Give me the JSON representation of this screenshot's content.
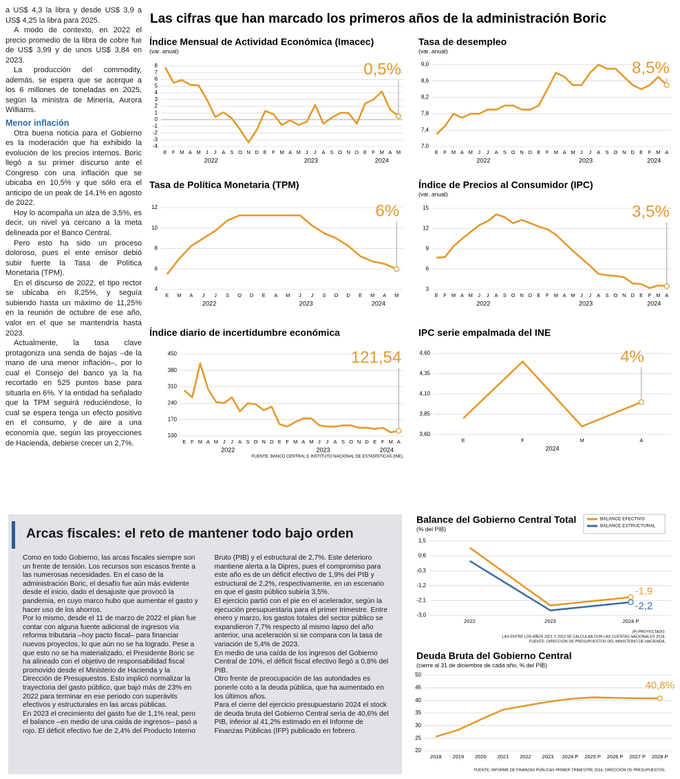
{
  "header": {
    "title": "Las cifras que han marcado los primeros años de la administración Boric"
  },
  "article_left": {
    "paragraphs_a": [
      "a US$ 4,3 la libra y desde US$ 3,9 a US$ 4,25 la libra para 2025.",
      "A modo de contexto, en 2022 el precio promedio de la libra de cobre fue de US$ 3,99 y de unos US$ 3,84 en 2023.",
      "La producción del commodity, además, se espera que se acerque a los 6 millones de toneladas en 2025, según la ministra de Minería, Aurora Williams."
    ],
    "subhead": "Menor inflación",
    "paragraphs_b": [
      "Otra buena noticia para el Gobierno es la moderación que ha exhibido la evolución de los precios internos. Boric llegó a su primer discurso ante el Congreso con una inflación que se ubicaba en 10,5% y que sólo era el anticipo de un peak de 14,1% en agosto de 2022.",
      "Hoy lo acompaña un alza de 3,5%, es decir, un nivel ya cercano a la meta delineada por el Banco Central.",
      "Pero esto ha sido un proceso doloroso, pues el ente emisor debió subir fuerte la Tasa de Política Monetaria (TPM).",
      "En el discurso de 2022, el tipo rector se ubicaba en 8,25%, y seguía subiendo hasta un máximo de 11,25% en la reunión de octubre de ese año, valor en el que se mantendría hasta 2023.",
      "Actualmente, la tasa clave protagoniza una senda de bajas –de la mano de una menor inflación–, por lo cual el Consejo del banco ya la ha recortado en 525 puntos base para situarla en 6%. Y la entidad ha señalado que la TPM seguirá reduciéndose, lo cual se espera tenga un efecto positivo en el consumo, y de aire a una economía que, según las proyecciones de Hacienda, debiese crecer un 2,7%."
    ]
  },
  "top_source": "FUENTE: BANCO CENTRAL E INSTITUTO NACIONAL DE ESTADÍSTICAS (INE)",
  "box": {
    "title": "Arcas fiscales: el reto de mantener todo bajo orden",
    "paragraphs": [
      "Como en todo Gobierno, las arcas fiscales siempre son un frente de tensión. Los recursos son escasos frente a las numerosas necesidades. En el caso de la administración Boric, el desafío fue aún más evidente desde el inicio, dado el desajuste que provocó la pandemia, en cuyo marco hubo que aumentar el gasto y hacer uso de los ahorros.",
      "Por lo mismo, desde el 11 de marzo de 2022 el plan fue contar con alguna fuente adicional de ingresos vía reforma tributaria –hoy pacto fiscal– para financiar nuevos proyectos, lo que aún no se ha logrado. Pese a que esto no se ha materializado, el Presidente Boric se ha alineado con el objetivo de responsabilidad fiscal promovido desde el Ministerio de Hacienda y la Dirección de Presupuestos. Esto implicó normalizar la trayectoria del gasto público, que bajó más de 23% en 2022 para terminar en ese periodo con superávits efectivos y estructurales en las arcas públicas.",
      "En 2023 el crecimiento del gasto fue de 1,1% real, pero el balance –en medio de una caída de ingresos– pasó a rojo. El déficit efectivo fue de 2,4% del Producto Interno Bruto (PIB) y el estructural de 2,7%. Este deterioro mantiene alerta a la Dipres, pues el compromiso para este año es de un déficit efectivo de 1,9% del PIB y estructural de 2,2%, respectivamente, en un escenario en que el gasto público subiría 3,5%.",
      "El ejercicio partió con el pie en el acelerador, según la ejecución presupuestaria para el primer trimestre. Entre enero y marzo, los gastos totales del sector público se expandieron 7,7% respecto al mismo lapso del año anterior, una aceleración si se compara con la tasa de variación de 5,4% de 2023.",
      "En medio de una caída de los ingresos del Gobierno Central de 10%, el déficit fiscal efectivo llegó a 0,8% del PIB.",
      "Otro frente de preocupación de las autoridades es ponerle coto a la deuda pública, que ha aumentado en los últimos años.",
      "Para el cierre del ejercicio presupuestario 2024 el stock de deuda bruta del Gobierno Central sería de 40,6% del PIB, inferior al 41,2% estimado en el Informe de Finanzas Públicas (IFP) publicado en febrero."
    ]
  },
  "chart_data": [
    {
      "type": "line",
      "title": "Índice Mensual de Actividad Económica (Imacec)",
      "subtitle": "(var. anual)",
      "color": "#e39a2d",
      "categories": [
        "E",
        "F",
        "M",
        "A",
        "M",
        "J",
        "J",
        "A",
        "S",
        "O",
        "N",
        "D",
        "E",
        "F",
        "M",
        "A",
        "M",
        "J",
        "J",
        "A",
        "S",
        "O",
        "N",
        "D",
        "E",
        "F",
        "M",
        "A",
        "M"
      ],
      "years": [
        "2022",
        "2023",
        "2024"
      ],
      "values": [
        7.8,
        5.5,
        5.9,
        5.2,
        5.1,
        3.0,
        0.4,
        1.1,
        0.2,
        -1.5,
        -3.4,
        -1.5,
        1.3,
        0.8,
        -0.8,
        -0.1,
        -0.8,
        -0.3,
        2.2,
        -0.6,
        0.3,
        1.0,
        1.0,
        -0.6,
        2.4,
        3.0,
        4.2,
        1.5,
        0.5
      ],
      "value_labels": [
        null,
        null,
        null,
        null,
        null,
        null,
        null,
        null,
        null,
        null,
        null,
        null,
        null,
        null,
        null,
        null,
        null,
        null,
        null,
        null,
        null,
        null,
        null,
        null,
        null,
        null,
        null,
        null,
        "0,5%"
      ],
      "ylim": [
        -4,
        8
      ],
      "yticks": [
        -4,
        -3,
        -2,
        -1,
        0,
        1,
        2,
        3,
        4,
        5,
        6,
        7,
        8
      ],
      "grid": true
    },
    {
      "type": "line",
      "title": "Tasa de desempleo",
      "subtitle": "(var. anual)",
      "color": "#e39a2d",
      "categories": [
        "E",
        "F",
        "M",
        "A",
        "M",
        "J",
        "J",
        "A",
        "S",
        "O",
        "N",
        "D",
        "E",
        "F",
        "M",
        "A",
        "M",
        "J",
        "J",
        "A",
        "S",
        "O",
        "N",
        "D",
        "E",
        "F",
        "M",
        "A"
      ],
      "years": [
        "2022",
        "2023",
        "2024"
      ],
      "values": [
        7.3,
        7.5,
        7.8,
        7.7,
        7.8,
        7.8,
        7.9,
        7.9,
        8.0,
        8.0,
        7.9,
        7.9,
        8.0,
        8.4,
        8.8,
        8.7,
        8.5,
        8.5,
        8.8,
        9.0,
        8.9,
        8.9,
        8.7,
        8.5,
        8.4,
        8.5,
        8.7,
        8.5
      ],
      "value_labels": [
        null,
        null,
        null,
        null,
        null,
        null,
        null,
        null,
        null,
        null,
        null,
        null,
        null,
        null,
        null,
        null,
        null,
        null,
        null,
        null,
        null,
        null,
        null,
        null,
        null,
        null,
        null,
        "8,5%"
      ],
      "ylim": [
        7.0,
        9.0
      ],
      "yticks": [
        {
          "value": 7.0,
          "label": "7,0"
        },
        {
          "value": 7.4,
          "label": "7,4"
        },
        {
          "value": 7.8,
          "label": "7,8"
        },
        {
          "value": 8.2,
          "label": "8,2"
        },
        {
          "value": 8.6,
          "label": "8,6"
        },
        {
          "value": 9.0,
          "label": "9,0"
        }
      ],
      "grid": true
    },
    {
      "type": "line",
      "title": "Tasa de Política Monetaria (TPM)",
      "color": "#e39a2d",
      "categories": [
        "E",
        "M",
        "A",
        "J",
        "J",
        "S",
        "O",
        "D",
        "E",
        "A",
        "M",
        "J",
        "J",
        "S",
        "O",
        "D",
        "E",
        "M",
        "A",
        "M"
      ],
      "years": [
        "2022",
        "2023",
        "2024"
      ],
      "values": [
        5.5,
        7.0,
        8.25,
        9.0,
        9.75,
        10.75,
        11.25,
        11.25,
        11.25,
        11.25,
        11.25,
        11.25,
        10.25,
        9.5,
        9.0,
        8.25,
        7.25,
        6.75,
        6.5,
        6.0
      ],
      "value_labels": [
        null,
        null,
        null,
        null,
        null,
        null,
        null,
        null,
        null,
        null,
        null,
        null,
        null,
        null,
        null,
        null,
        null,
        null,
        null,
        "6%"
      ],
      "ylim": [
        4,
        12
      ],
      "yticks": [
        4,
        6,
        8,
        10,
        12
      ],
      "grid": true
    },
    {
      "type": "line",
      "title": "Índice de Precios al Consumidor (IPC)",
      "subtitle": "(var. anual)",
      "color": "#e39a2d",
      "categories": [
        "E",
        "F",
        "M",
        "A",
        "M",
        "J",
        "J",
        "A",
        "S",
        "O",
        "N",
        "D",
        "E",
        "F",
        "M",
        "A",
        "M",
        "J",
        "J",
        "A",
        "S",
        "O",
        "N",
        "D",
        "E",
        "F",
        "M",
        "A"
      ],
      "years": [
        "2022",
        "2023",
        "2024"
      ],
      "values": [
        7.7,
        7.8,
        9.4,
        10.5,
        11.5,
        12.5,
        13.1,
        14.1,
        13.7,
        12.8,
        13.3,
        12.8,
        12.3,
        11.9,
        11.1,
        9.9,
        8.7,
        7.6,
        6.5,
        5.3,
        5.1,
        5.0,
        4.8,
        3.9,
        3.8,
        3.2,
        3.6,
        3.5
      ],
      "value_labels": [
        null,
        null,
        null,
        null,
        null,
        null,
        null,
        null,
        null,
        null,
        null,
        null,
        null,
        null,
        null,
        null,
        null,
        null,
        null,
        null,
        null,
        null,
        null,
        null,
        null,
        null,
        null,
        "3,5%"
      ],
      "ylim": [
        3,
        15
      ],
      "yticks": [
        3,
        6,
        9,
        12,
        15
      ],
      "grid": true
    },
    {
      "type": "line",
      "title": "Índice diario de incertidumbre económica",
      "color": "#e39a2d",
      "categories": [
        "E",
        "F",
        "M",
        "A",
        "M",
        "J",
        "J",
        "A",
        "S",
        "O",
        "N",
        "D",
        "E",
        "F",
        "M",
        "A",
        "M",
        "J",
        "J",
        "A",
        "S",
        "O",
        "N",
        "D",
        "E",
        "F",
        "M",
        "A"
      ],
      "years": [
        "2022",
        "2023",
        "2024"
      ],
      "values": [
        295,
        265,
        410,
        300,
        245,
        240,
        265,
        205,
        240,
        235,
        210,
        225,
        150,
        140,
        160,
        175,
        175,
        145,
        140,
        140,
        145,
        145,
        135,
        135,
        130,
        135,
        115,
        121.54
      ],
      "value_labels": [
        null,
        null,
        null,
        null,
        null,
        null,
        null,
        null,
        null,
        null,
        null,
        null,
        null,
        null,
        null,
        null,
        null,
        null,
        null,
        null,
        null,
        null,
        null,
        null,
        null,
        null,
        null,
        "121,54"
      ],
      "ylim": [
        100,
        450
      ],
      "yticks": [
        100,
        170,
        240,
        310,
        380,
        450
      ],
      "grid": true
    },
    {
      "type": "line",
      "title": "IPC serie empalmada del INE",
      "color": "#e39a2d",
      "categories": [
        "E",
        "F",
        "M",
        "A"
      ],
      "years": [
        "2024"
      ],
      "values": [
        3.8,
        4.5,
        3.7,
        4.0
      ],
      "value_labels": [
        null,
        null,
        null,
        "4%"
      ],
      "ylim": [
        3.6,
        4.6
      ],
      "yticks": [
        {
          "value": 3.6,
          "label": "3,60"
        },
        {
          "value": 3.85,
          "label": "3,85"
        },
        {
          "value": 4.1,
          "label": "4,10"
        },
        {
          "value": 4.35,
          "label": "4,35"
        },
        {
          "value": 4.6,
          "label": "4,60"
        }
      ],
      "grid": true
    },
    {
      "type": "line",
      "title": "Balance del Gobierno Central Total",
      "subtitle": "(% del PIB)",
      "categories": [
        "2022",
        "2023",
        "2024 P"
      ],
      "series": [
        {
          "name": "BALANCE EFECTIVO",
          "color": "#e39a2d",
          "values": [
            1.1,
            -2.4,
            -1.9
          ],
          "value_labels": [
            null,
            null,
            "-1,9"
          ]
        },
        {
          "name": "BALANCE ESTRUCTURAL",
          "color": "#3e6ea3",
          "values": [
            0.3,
            -2.7,
            -2.2
          ],
          "value_labels": [
            null,
            null,
            "-2,2"
          ]
        }
      ],
      "ylim": [
        -3.0,
        1.5
      ],
      "yticks": [
        {
          "value": -3.0,
          "label": "-3,0"
        },
        {
          "value": -2.1,
          "label": "-2,1"
        },
        {
          "value": -1.2,
          "label": "-1,2"
        },
        {
          "value": -0.3,
          "label": "-0,3"
        },
        {
          "value": 0.6,
          "label": "0,6"
        },
        {
          "value": 1.5,
          "label": "1,5"
        }
      ],
      "grid": true,
      "legend": "top-right",
      "notes": [
        "(P) PROYECTADO.",
        "LAS ENTRE LOS AÑOS 2021 Y 2023 SE CALCULAN CON LAS CUENTAS NACIONALES 2018.",
        "FUENTE: DIRECCIÓN DE PRESUPUESTOS DEL MINISTERIO DE HACIENDA."
      ]
    },
    {
      "type": "line",
      "title": "Deuda Bruta del Gobierno Central",
      "subtitle": "(cierre al 31 de diciembre de cada año, % del PIB)",
      "color": "#e39a2d",
      "categories": [
        "2018",
        "2019",
        "2020",
        "2021",
        "2022",
        "2023",
        "2024 P",
        "2025 P",
        "2026 P",
        "2027 P",
        "2028 P"
      ],
      "values": [
        25.6,
        28.3,
        32.4,
        36.3,
        37.9,
        39.4,
        40.6,
        41.2,
        41.0,
        40.8,
        40.8
      ],
      "value_labels": [
        null,
        null,
        null,
        null,
        null,
        null,
        null,
        null,
        null,
        null,
        "40,8%"
      ],
      "ylim": [
        20,
        50
      ],
      "yticks": [
        20,
        25,
        30,
        35,
        40,
        45,
        50
      ],
      "grid": true,
      "notes": [
        "FUENTE: INFORME DE FINANZAS PÚBLICAS PRIMER TRIMESTRE 2024, DIRECCIÓN DE PRESUPUESTOS."
      ]
    }
  ]
}
